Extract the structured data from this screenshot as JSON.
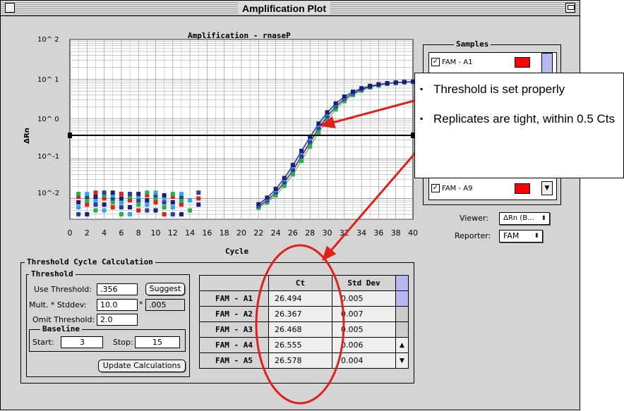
{
  "window": {
    "title": "Amplification Plot"
  },
  "chart": {
    "title": "Amplification - rnaseP",
    "y_axis_label": "ΔRn",
    "x_axis_label": "Cycle",
    "y_ticks": [
      "10^ 2",
      "10^ 1",
      "10^ 0",
      "10^-1",
      "10^-2"
    ],
    "x_ticks": [
      "0",
      "2",
      "4",
      "6",
      "8",
      "10",
      "12",
      "14",
      "16",
      "18",
      "20",
      "22",
      "24",
      "26",
      "28",
      "30",
      "32",
      "34",
      "36",
      "38",
      "40"
    ]
  },
  "chart_data": {
    "type": "scatter",
    "title": "Amplification - rnaseP",
    "xlabel": "Cycle",
    "ylabel": "ΔRn",
    "xlim": [
      0,
      40
    ],
    "ylim": [
      0.003,
      100
    ],
    "yscale": "log",
    "threshold": 0.356,
    "series_shape": "sigmoid amplification curves, log ΔRn rising from ~0.003 at cycle 22 to ~9 at cycle 40",
    "series": [
      {
        "name": "FAM - A1",
        "color": "#e0201c"
      },
      {
        "name": "FAM - A2",
        "color": "#22b24c"
      },
      {
        "name": "FAM - A3",
        "color": "#2a3ea0"
      },
      {
        "name": "FAM - A4",
        "color": "#2ea8ea"
      },
      {
        "name": "FAM - A5",
        "color": "#1c1c7a"
      }
    ]
  },
  "samples": {
    "title": "Samples",
    "items": [
      {
        "label": "FAM - A1",
        "checked": true,
        "color": "#ff0000"
      },
      {
        "label": "FAM - A9",
        "checked": true,
        "color": "#ff0000"
      }
    ]
  },
  "viewer": {
    "label": "Viewer:",
    "value": "ΔRn (B..."
  },
  "reporter": {
    "label": "Reporter:",
    "value": "FAM"
  },
  "threshold_calc": {
    "title": "Threshold Cycle Calculation",
    "threshold_group": "Threshold",
    "use_threshold_label": "Use Threshold:",
    "use_threshold_value": ".356",
    "suggest_label": "Suggest",
    "mult_label": "Mult. * Stddev:",
    "mult_value": "10.0",
    "mult_star": "*",
    "mult_result": ".005",
    "omit_label": "Omit Threshold:",
    "omit_value": "2.0",
    "baseline_group": "Baseline",
    "start_label": "Start:",
    "start_value": "3",
    "stop_label": "Stop:",
    "stop_value": "15",
    "update_label": "Update Calculations"
  },
  "ct_table": {
    "headers": [
      "",
      "Ct",
      "Std Dev"
    ],
    "rows": [
      {
        "name": "FAM - A1",
        "ct": "26.494",
        "sd": "0.005"
      },
      {
        "name": "FAM - A2",
        "ct": "26.367",
        "sd": "0.007"
      },
      {
        "name": "FAM - A3",
        "ct": "26.468",
        "sd": "0.005"
      },
      {
        "name": "FAM - A4",
        "ct": "26.555",
        "sd": "0.006"
      },
      {
        "name": "FAM - A5",
        "ct": "26.578",
        "sd": "0.004"
      }
    ]
  },
  "callout": {
    "bullets": [
      "Threshold is set properly",
      "Replicates are tight, within 0.5 Cts"
    ]
  },
  "annotation_color": "#e0201c"
}
